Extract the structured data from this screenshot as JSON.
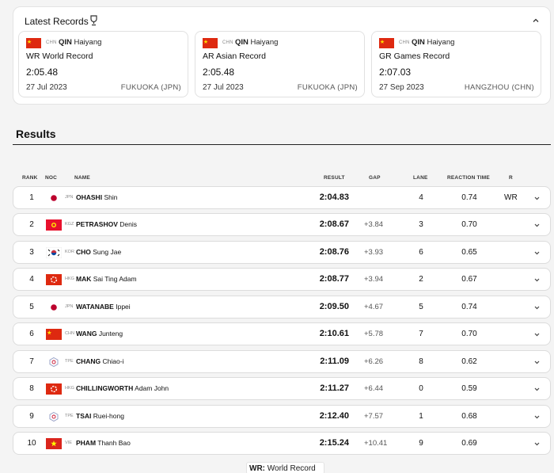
{
  "latest_records": {
    "title": "Latest Records",
    "cards": [
      {
        "noc": "CHN",
        "last_name": "QIN",
        "first_name": "Haiyang",
        "record": "WR  World Record",
        "time": "2:05.48",
        "date": "27 Jul 2023",
        "location": "FUKUOKA (JPN)"
      },
      {
        "noc": "CHN",
        "last_name": "QIN",
        "first_name": "Haiyang",
        "record": "AR  Asian Record",
        "time": "2:05.48",
        "date": "27 Jul 2023",
        "location": "FUKUOKA (JPN)"
      },
      {
        "noc": "CHN",
        "last_name": "QIN",
        "first_name": "Haiyang",
        "record": "GR  Games Record",
        "time": "2:07.03",
        "date": "27 Sep 2023",
        "location": "HANGZHOU (CHN)"
      }
    ]
  },
  "results": {
    "title": "Results",
    "columns": {
      "rank": "RANK",
      "noc": "NOC",
      "name": "NAME",
      "result": "RESULT",
      "gap": "GAP",
      "lane": "LANE",
      "reaction": "REACTION TIME",
      "record": "R"
    },
    "rows": [
      {
        "rank": "1",
        "noc": "JPN",
        "last_name": "OHASHI",
        "first_name": "Shin",
        "result": "2:04.83",
        "gap": "",
        "lane": "4",
        "reaction": "0.74",
        "record": "WR"
      },
      {
        "rank": "2",
        "noc": "KGZ",
        "last_name": "PETRASHOV",
        "first_name": "Denis",
        "result": "2:08.67",
        "gap": "+3.84",
        "lane": "3",
        "reaction": "0.70",
        "record": ""
      },
      {
        "rank": "3",
        "noc": "KOR",
        "last_name": "CHO",
        "first_name": "Sung Jae",
        "result": "2:08.76",
        "gap": "+3.93",
        "lane": "6",
        "reaction": "0.65",
        "record": ""
      },
      {
        "rank": "4",
        "noc": "HKG",
        "last_name": "MAK",
        "first_name": "Sai Ting Adam",
        "result": "2:08.77",
        "gap": "+3.94",
        "lane": "2",
        "reaction": "0.67",
        "record": ""
      },
      {
        "rank": "5",
        "noc": "JPN",
        "last_name": "WATANABE",
        "first_name": "Ippei",
        "result": "2:09.50",
        "gap": "+4.67",
        "lane": "5",
        "reaction": "0.74",
        "record": ""
      },
      {
        "rank": "6",
        "noc": "CHN",
        "last_name": "WANG",
        "first_name": "Junteng",
        "result": "2:10.61",
        "gap": "+5.78",
        "lane": "7",
        "reaction": "0.70",
        "record": ""
      },
      {
        "rank": "7",
        "noc": "TPE",
        "last_name": "CHANG",
        "first_name": "Chiao-i",
        "result": "2:11.09",
        "gap": "+6.26",
        "lane": "8",
        "reaction": "0.62",
        "record": ""
      },
      {
        "rank": "8",
        "noc": "HKG",
        "last_name": "CHILLINGWORTH",
        "first_name": "Adam John",
        "result": "2:11.27",
        "gap": "+6.44",
        "lane": "0",
        "reaction": "0.59",
        "record": ""
      },
      {
        "rank": "9",
        "noc": "TPE",
        "last_name": "TSAI",
        "first_name": "Ruei-hong",
        "result": "2:12.40",
        "gap": "+7.57",
        "lane": "1",
        "reaction": "0.68",
        "record": ""
      },
      {
        "rank": "10",
        "noc": "VIE",
        "last_name": "PHAM",
        "first_name": "Thanh Bao",
        "result": "2:15.24",
        "gap": "+10.41",
        "lane": "9",
        "reaction": "0.69",
        "record": ""
      }
    ]
  },
  "legend": {
    "code": "WR:",
    "label": "World Record"
  },
  "icons": {
    "records_info": "trophy-icon",
    "collapse": "chevron-up-icon",
    "row_expand": "chevron-down-icon"
  },
  "colors": {
    "panel_bg": "#ffffff",
    "page_bg": "#f4f4f4",
    "chn_red": "#de2910",
    "jpn_red": "#bc002d",
    "kgz_red": "#e8112d",
    "hkg_red": "#de2910",
    "vie_red": "#da251d",
    "star_yellow": "#ffde00"
  }
}
